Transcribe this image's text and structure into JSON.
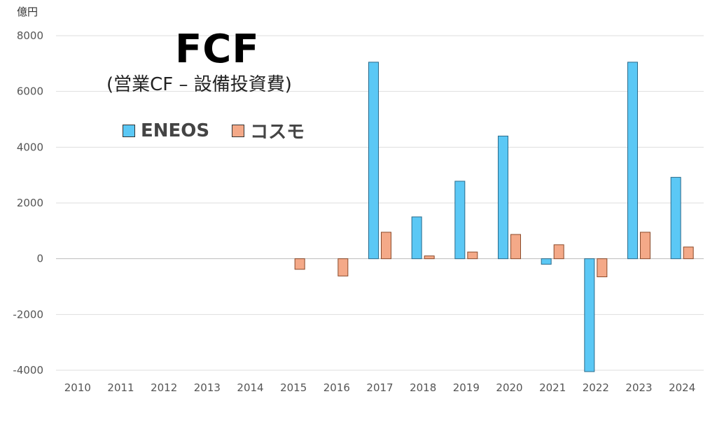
{
  "chart_data": {
    "type": "bar",
    "title": "FCF",
    "subtitle": "(営業CF – 設備投資費)",
    "unit_label": "億円",
    "categories": [
      "2010",
      "2011",
      "2012",
      "2013",
      "2014",
      "2015",
      "2016",
      "2017",
      "2018",
      "2019",
      "2020",
      "2021",
      "2022",
      "2023",
      "2024"
    ],
    "series": [
      {
        "name": "ENEOS",
        "color": "#5bc8f5",
        "values": [
          null,
          null,
          null,
          null,
          null,
          null,
          null,
          7050,
          1500,
          2780,
          4400,
          -200,
          -4050,
          7050,
          2920
        ]
      },
      {
        "name": "コスモ",
        "color": "#f4a988",
        "values": [
          null,
          null,
          null,
          null,
          null,
          -380,
          -620,
          950,
          100,
          240,
          870,
          500,
          -650,
          950,
          420
        ]
      }
    ],
    "ylim": [
      -4000,
      8000
    ],
    "yticks": [
      8000,
      6000,
      4000,
      2000,
      0,
      -2000,
      -4000
    ],
    "grid": true,
    "legend_position": "top-left"
  }
}
